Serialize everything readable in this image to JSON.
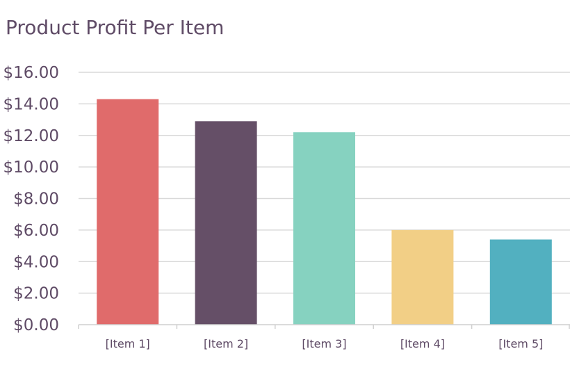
{
  "chart_data": {
    "type": "bar",
    "title": "Product Profit Per Item",
    "xlabel": "",
    "ylabel": "",
    "categories": [
      "[Item 1]",
      "[Item 2]",
      "[Item 3]",
      "[Item 4]",
      "[Item 5]"
    ],
    "values": [
      14.3,
      12.9,
      12.2,
      6.0,
      5.4
    ],
    "ylim": [
      0,
      16
    ],
    "y_ticks": [
      0,
      2,
      4,
      6,
      8,
      10,
      12,
      14,
      16
    ],
    "y_tick_labels": [
      "$0.00",
      "$2.00",
      "$4.00",
      "$6.00",
      "$8.00",
      "$10.00",
      "$12.00",
      "$14.00",
      "$16.00"
    ],
    "bar_colors": [
      "#e06b6b",
      "#654f67",
      "#86d2c0",
      "#f2cf86",
      "#52b0c0"
    ],
    "grid": true,
    "legend": "none"
  }
}
